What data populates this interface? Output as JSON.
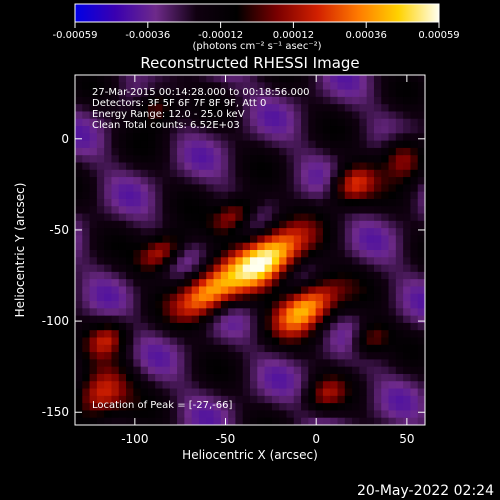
{
  "colorbar": {
    "tick_labels": [
      "-0.00059",
      "-0.00036",
      "-0.00012",
      "0.00012",
      "0.00036",
      "0.00059"
    ],
    "unit_label": "(photons cm⁻² s⁻¹ asec⁻²)",
    "colors": [
      "#0000e6",
      "#3a00b0",
      "#6e2a8a",
      "#100010",
      "#000000",
      "#7a0000",
      "#d22000",
      "#ff7a00",
      "#ffd200",
      "#fffff0"
    ]
  },
  "chart_data": {
    "type": "heatmap",
    "title": "Reconstructed RHESSI Image",
    "xlabel": "Heliocentric X (arcsec)",
    "ylabel": "Heliocentric Y (arcsec)",
    "xlim": [
      -133,
      60
    ],
    "ylim": [
      -157,
      35
    ],
    "x_ticks": [
      -100,
      -50,
      0,
      50
    ],
    "y_ticks": [
      0,
      -50,
      -100,
      -150
    ],
    "value_range": [
      -0.00059,
      0.00059
    ],
    "peak_location": [
      -27,
      -66
    ],
    "annotations": [
      "27-Mar-2015 00:14:28.000 to 00:18:56.000",
      "Detectors: 3F 5F 6F 7F 8F 9F, Att 0",
      "Energy Range: 12.0 - 25.0 keV",
      "Clean    Total counts: 6.52E+03"
    ],
    "peak_label": "Location of Peak = [-27,-66]",
    "grid": false
  },
  "timestamp": "20-May-2022 02:24"
}
